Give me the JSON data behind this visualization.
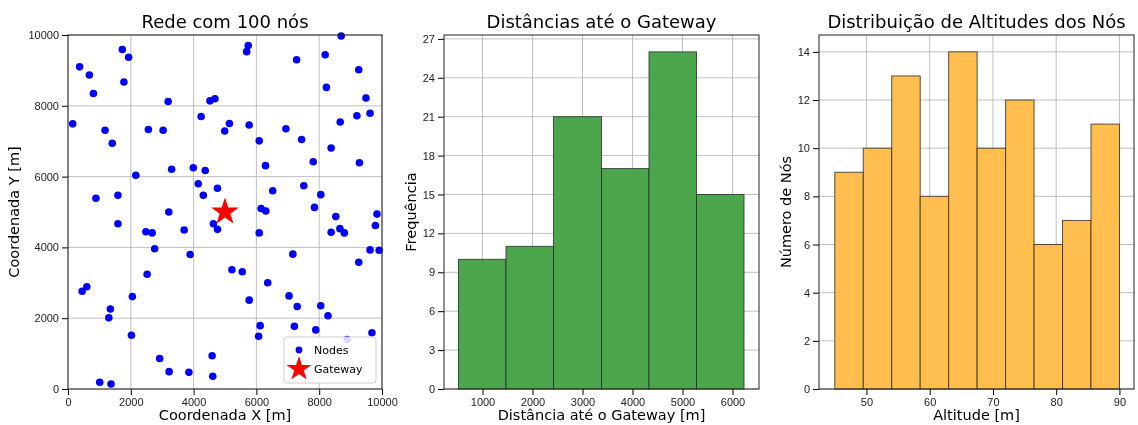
{
  "chart_data": [
    {
      "type": "scatter",
      "title": "Rede com 100 nós",
      "xlabel": "Coordenada X [m]",
      "ylabel": "Coordenada Y [m]",
      "xlim": [
        0,
        10000
      ],
      "ylim": [
        0,
        10000
      ],
      "xticks": [
        0,
        2000,
        4000,
        6000,
        8000,
        10000
      ],
      "yticks": [
        0,
        2000,
        4000,
        6000,
        8000,
        10000
      ],
      "grid": true,
      "legend": "bottom right",
      "series": [
        {
          "name": "Nodes",
          "color": "#0000ff",
          "marker": "circle",
          "x": [
            8700,
            5740,
            5690,
            1730,
            1930,
            7280,
            8190,
            370,
            680,
            1780,
            9260,
            810,
            8230,
            9490,
            3190,
            4520,
            4680,
            4240,
            9200,
            9620,
            150,
            8670,
            5140,
            4990,
            5770,
            1180,
            2560,
            3030,
            6940,
            1410,
            6090,
            7440,
            8380,
            7810,
            9280,
            6290,
            3300,
            3990,
            4370,
            2160,
            4150,
            4760,
            4310,
            6520,
            7510,
            8050,
            890,
            1590,
            3210,
            6150,
            6300,
            7850,
            8530,
            9840,
            1590,
            2480,
            2680,
            3700,
            4630,
            4760,
            6090,
            8660,
            8380,
            8800,
            9790,
            2760,
            3890,
            7160,
            9910,
            9620,
            9260,
            2520,
            5220,
            5550,
            6360,
            450,
            600,
            2050,
            5770,
            7040,
            7300,
            8050,
            8280,
            1350,
            1300,
            6120,
            7210,
            7890,
            6070,
            2020,
            8890,
            9680,
            4590,
            2920,
            3220,
            3850,
            4610,
            1010,
            1370
          ],
          "values": [
            9970,
            9700,
            9530,
            9590,
            9370,
            9300,
            9440,
            9100,
            8870,
            8670,
            9020,
            8350,
            8520,
            8220,
            8120,
            8140,
            8200,
            7700,
            7720,
            7790,
            7490,
            7540,
            7500,
            7290,
            7460,
            7310,
            7330,
            7310,
            7350,
            6940,
            7010,
            7050,
            6810,
            6420,
            6390,
            6310,
            6210,
            6250,
            6170,
            6040,
            5800,
            5670,
            5470,
            5600,
            5740,
            5490,
            5390,
            5470,
            5000,
            5100,
            5030,
            5130,
            4870,
            4940,
            4670,
            4440,
            4410,
            4490,
            4670,
            4510,
            4410,
            4530,
            4430,
            4410,
            4620,
            3960,
            3800,
            3810,
            3920,
            3930,
            3580,
            3240,
            3370,
            3310,
            3000,
            2760,
            2890,
            2610,
            2510,
            2630,
            2330,
            2350,
            2070,
            2260,
            2010,
            1790,
            1770,
            1670,
            1490,
            1520,
            1400,
            1590,
            940,
            860,
            490,
            470,
            360,
            190,
            140
          ]
        },
        {
          "name": "Gateway",
          "color": "#ff0000",
          "marker": "star",
          "x": [
            5000
          ],
          "values": [
            5000
          ]
        }
      ]
    },
    {
      "type": "histogram",
      "title": "Distâncias até o Gateway",
      "xlabel": "Distância até o Gateway [m]",
      "ylabel": "Frequência",
      "bins": [
        520,
        1470,
        2420,
        3380,
        4330,
        5280,
        6230
      ],
      "values": [
        10,
        11,
        21,
        17,
        26,
        15
      ],
      "color": "#4ca64c",
      "xlim": [
        230,
        6530
      ],
      "ylim": [
        0,
        27.3
      ],
      "xticks": [
        1000,
        2000,
        3000,
        4000,
        5000,
        6000
      ],
      "yticks": [
        0,
        3,
        6,
        9,
        12,
        15,
        18,
        21,
        24,
        27
      ],
      "grid": true
    },
    {
      "type": "histogram",
      "title": "Distribuição de Altitudes dos Nós",
      "xlabel": "Altitude [m]",
      "ylabel": "Número de Nós",
      "bins": [
        45,
        49.5,
        54,
        58.5,
        63,
        67.5,
        72,
        76.5,
        81,
        85.5,
        90
      ],
      "values": [
        9,
        10,
        13,
        8,
        14,
        10,
        12,
        6,
        7,
        11
      ],
      "color": "#ffbe4d",
      "xlim": [
        42.5,
        92.3
      ],
      "ylim": [
        0,
        14.7
      ],
      "xticks": [
        50,
        60,
        70,
        80,
        90
      ],
      "yticks": [
        0,
        2,
        4,
        6,
        8,
        10,
        12,
        14
      ],
      "grid": true
    }
  ]
}
